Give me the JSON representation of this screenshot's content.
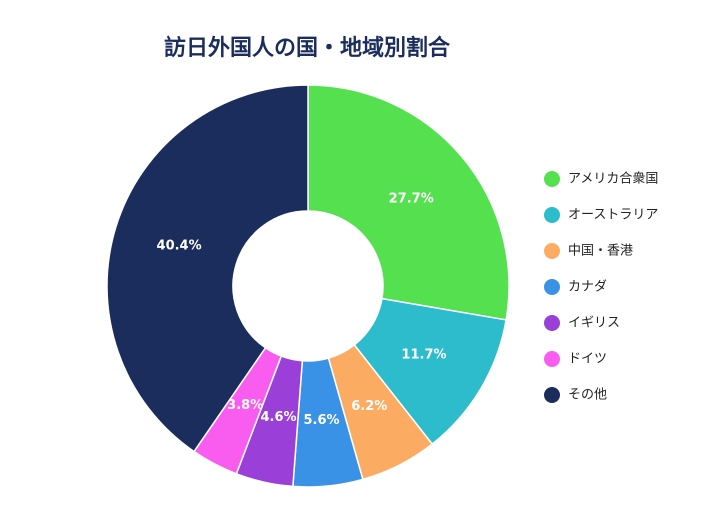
{
  "chart_data": {
    "type": "donut",
    "title": "訪日外国人の国・地域別割合",
    "categories": [
      "アメリカ合衆国",
      "オーストラリア",
      "中国・香港",
      "カナダ",
      "イギリス",
      "ドイツ",
      "その他"
    ],
    "values": [
      27.7,
      11.7,
      6.2,
      5.6,
      4.6,
      3.8,
      40.4
    ],
    "value_labels": [
      "27.7%",
      "11.7%",
      "6.2%",
      "5.6%",
      "4.6%",
      "3.8%",
      "40.4%"
    ],
    "colors": [
      "#55e04f",
      "#2cbccb",
      "#fbac62",
      "#3a92e6",
      "#9a3fd8",
      "#f95df0",
      "#1b2d5c"
    ],
    "legend": "right"
  }
}
